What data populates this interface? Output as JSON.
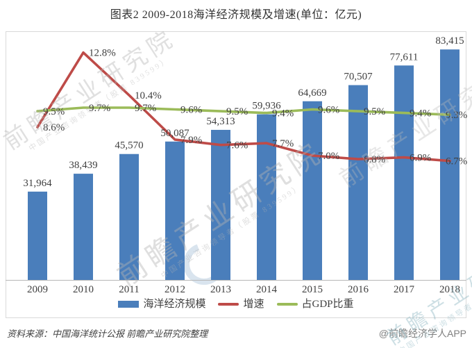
{
  "chart_data": {
    "type": "bar+line",
    "title": "图表2 2009-2018海洋经济规模及增速(单位：亿元)",
    "categories": [
      "2009",
      "2010",
      "2011",
      "2012",
      "2013",
      "2014",
      "2015",
      "2016",
      "2017",
      "2018"
    ],
    "series": [
      {
        "key": "marine-economy-scale",
        "name": "海洋经济规模",
        "type": "bar",
        "axis": "left",
        "color": "#4a7ebb",
        "values": [
          31964,
          38439,
          45570,
          50087,
          54313,
          59936,
          64669,
          70507,
          77611,
          83415
        ],
        "labels": [
          "31,964",
          "38,439",
          "45,570",
          "50,087",
          "54,313",
          "59,936",
          "64,669",
          "70,507",
          "77,611",
          "83,415"
        ]
      },
      {
        "key": "growth-rate",
        "name": "增速",
        "type": "line",
        "axis": "right",
        "color": "#be4b48",
        "values": [
          8.6,
          12.8,
          10.4,
          7.9,
          7.6,
          7.7,
          7.0,
          6.8,
          6.9,
          6.7
        ],
        "labels": [
          "8.6%",
          "12.8%",
          "10.4%",
          "7.9%",
          "7.6%",
          "7.7%",
          "7.0%",
          "6.8%",
          "6.9%",
          "6.7%"
        ]
      },
      {
        "key": "gdp-share",
        "name": "占GDP比重",
        "type": "line",
        "axis": "right",
        "color": "#9bbb59",
        "values": [
          9.5,
          9.7,
          9.7,
          9.6,
          9.5,
          9.4,
          9.6,
          9.5,
          9.4,
          9.3
        ],
        "labels": [
          "9.5%",
          "9.7%",
          "9.7%",
          "9.6%",
          "9.5%",
          "9.4%",
          "9.6%",
          "9.5%",
          "9.4%",
          "9.3%"
        ]
      }
    ],
    "left_axis": {
      "min": 0,
      "max": 90000,
      "ticks_visible": false
    },
    "right_axis": {
      "min": 0,
      "max": 14,
      "unit": "%",
      "ticks_visible": false
    },
    "legend_position": "bottom",
    "grid": false
  },
  "footer": {
    "source": "资料来源：中国海洋统计公报 前瞻产业研究院整理",
    "brand": "@前瞻经济学人APP"
  },
  "watermark": {
    "main": "前瞻产业研究院",
    "sub": "中国产业咨询领导者（股票 839599）"
  }
}
